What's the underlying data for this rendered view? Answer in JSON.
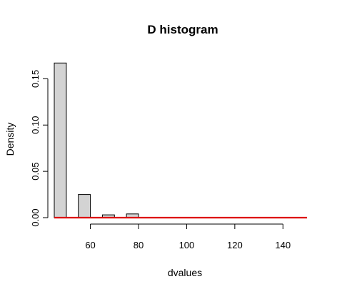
{
  "chart_data": {
    "type": "bar",
    "title": "D histogram",
    "xlabel": "dvalues",
    "ylabel": "Density",
    "xlim": [
      45,
      150
    ],
    "ylim": [
      0,
      0.168
    ],
    "x_ticks": [
      60,
      80,
      100,
      120,
      140
    ],
    "x_tick_labels": [
      "60",
      "80",
      "100",
      "120",
      "140"
    ],
    "y_ticks": [
      0,
      0.05,
      0.1,
      0.15
    ],
    "y_tick_labels": [
      "0.00",
      "0.05",
      "0.10",
      "0.15"
    ],
    "bins": [
      {
        "x0": 45,
        "x1": 50,
        "density": 0.167
      },
      {
        "x0": 50,
        "x1": 55,
        "density": 0
      },
      {
        "x0": 55,
        "x1": 60,
        "density": 0.025
      },
      {
        "x0": 60,
        "x1": 65,
        "density": 0
      },
      {
        "x0": 65,
        "x1": 70,
        "density": 0.003
      },
      {
        "x0": 70,
        "x1": 75,
        "density": 0
      },
      {
        "x0": 75,
        "x1": 80,
        "density": 0.004
      }
    ],
    "bar_fill": "#d3d3d3",
    "bar_stroke": "#000000",
    "overlay_line": {
      "x": [
        45,
        150
      ],
      "y": [
        0,
        0
      ],
      "color": "#dd0000"
    },
    "grid": false
  }
}
